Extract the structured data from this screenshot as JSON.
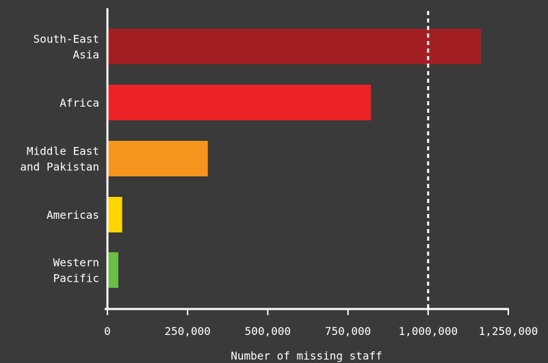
{
  "chart_data": {
    "type": "bar",
    "orientation": "horizontal",
    "categories": [
      [
        "South-East",
        "Asia"
      ],
      [
        "Africa"
      ],
      [
        "Middle East",
        "and Pakistan"
      ],
      [
        "Americas"
      ],
      [
        "Western",
        "Pacific"
      ]
    ],
    "values": [
      1165000,
      822000,
      313000,
      46000,
      34000
    ],
    "colors": [
      "#a31f24",
      "#ed2226",
      "#f7941d",
      "#ffd500",
      "#6cbd45"
    ],
    "xlabel": "Number of missing staff",
    "ylabel": "",
    "title": "",
    "xlim": [
      0,
      1250000
    ],
    "xticks": [
      0,
      250000,
      500000,
      750000,
      1000000,
      1250000
    ],
    "xtick_labels": [
      "0",
      "250,000",
      "500,000",
      "750,000",
      "1,000,000",
      "1,250,000"
    ],
    "reference_line": 1000000,
    "grid": false,
    "legend": "none"
  },
  "colors": {
    "background": "#3a3a3a",
    "axis": "#ffffff",
    "text": "#ffffff",
    "reference_line": "#ffffff"
  }
}
